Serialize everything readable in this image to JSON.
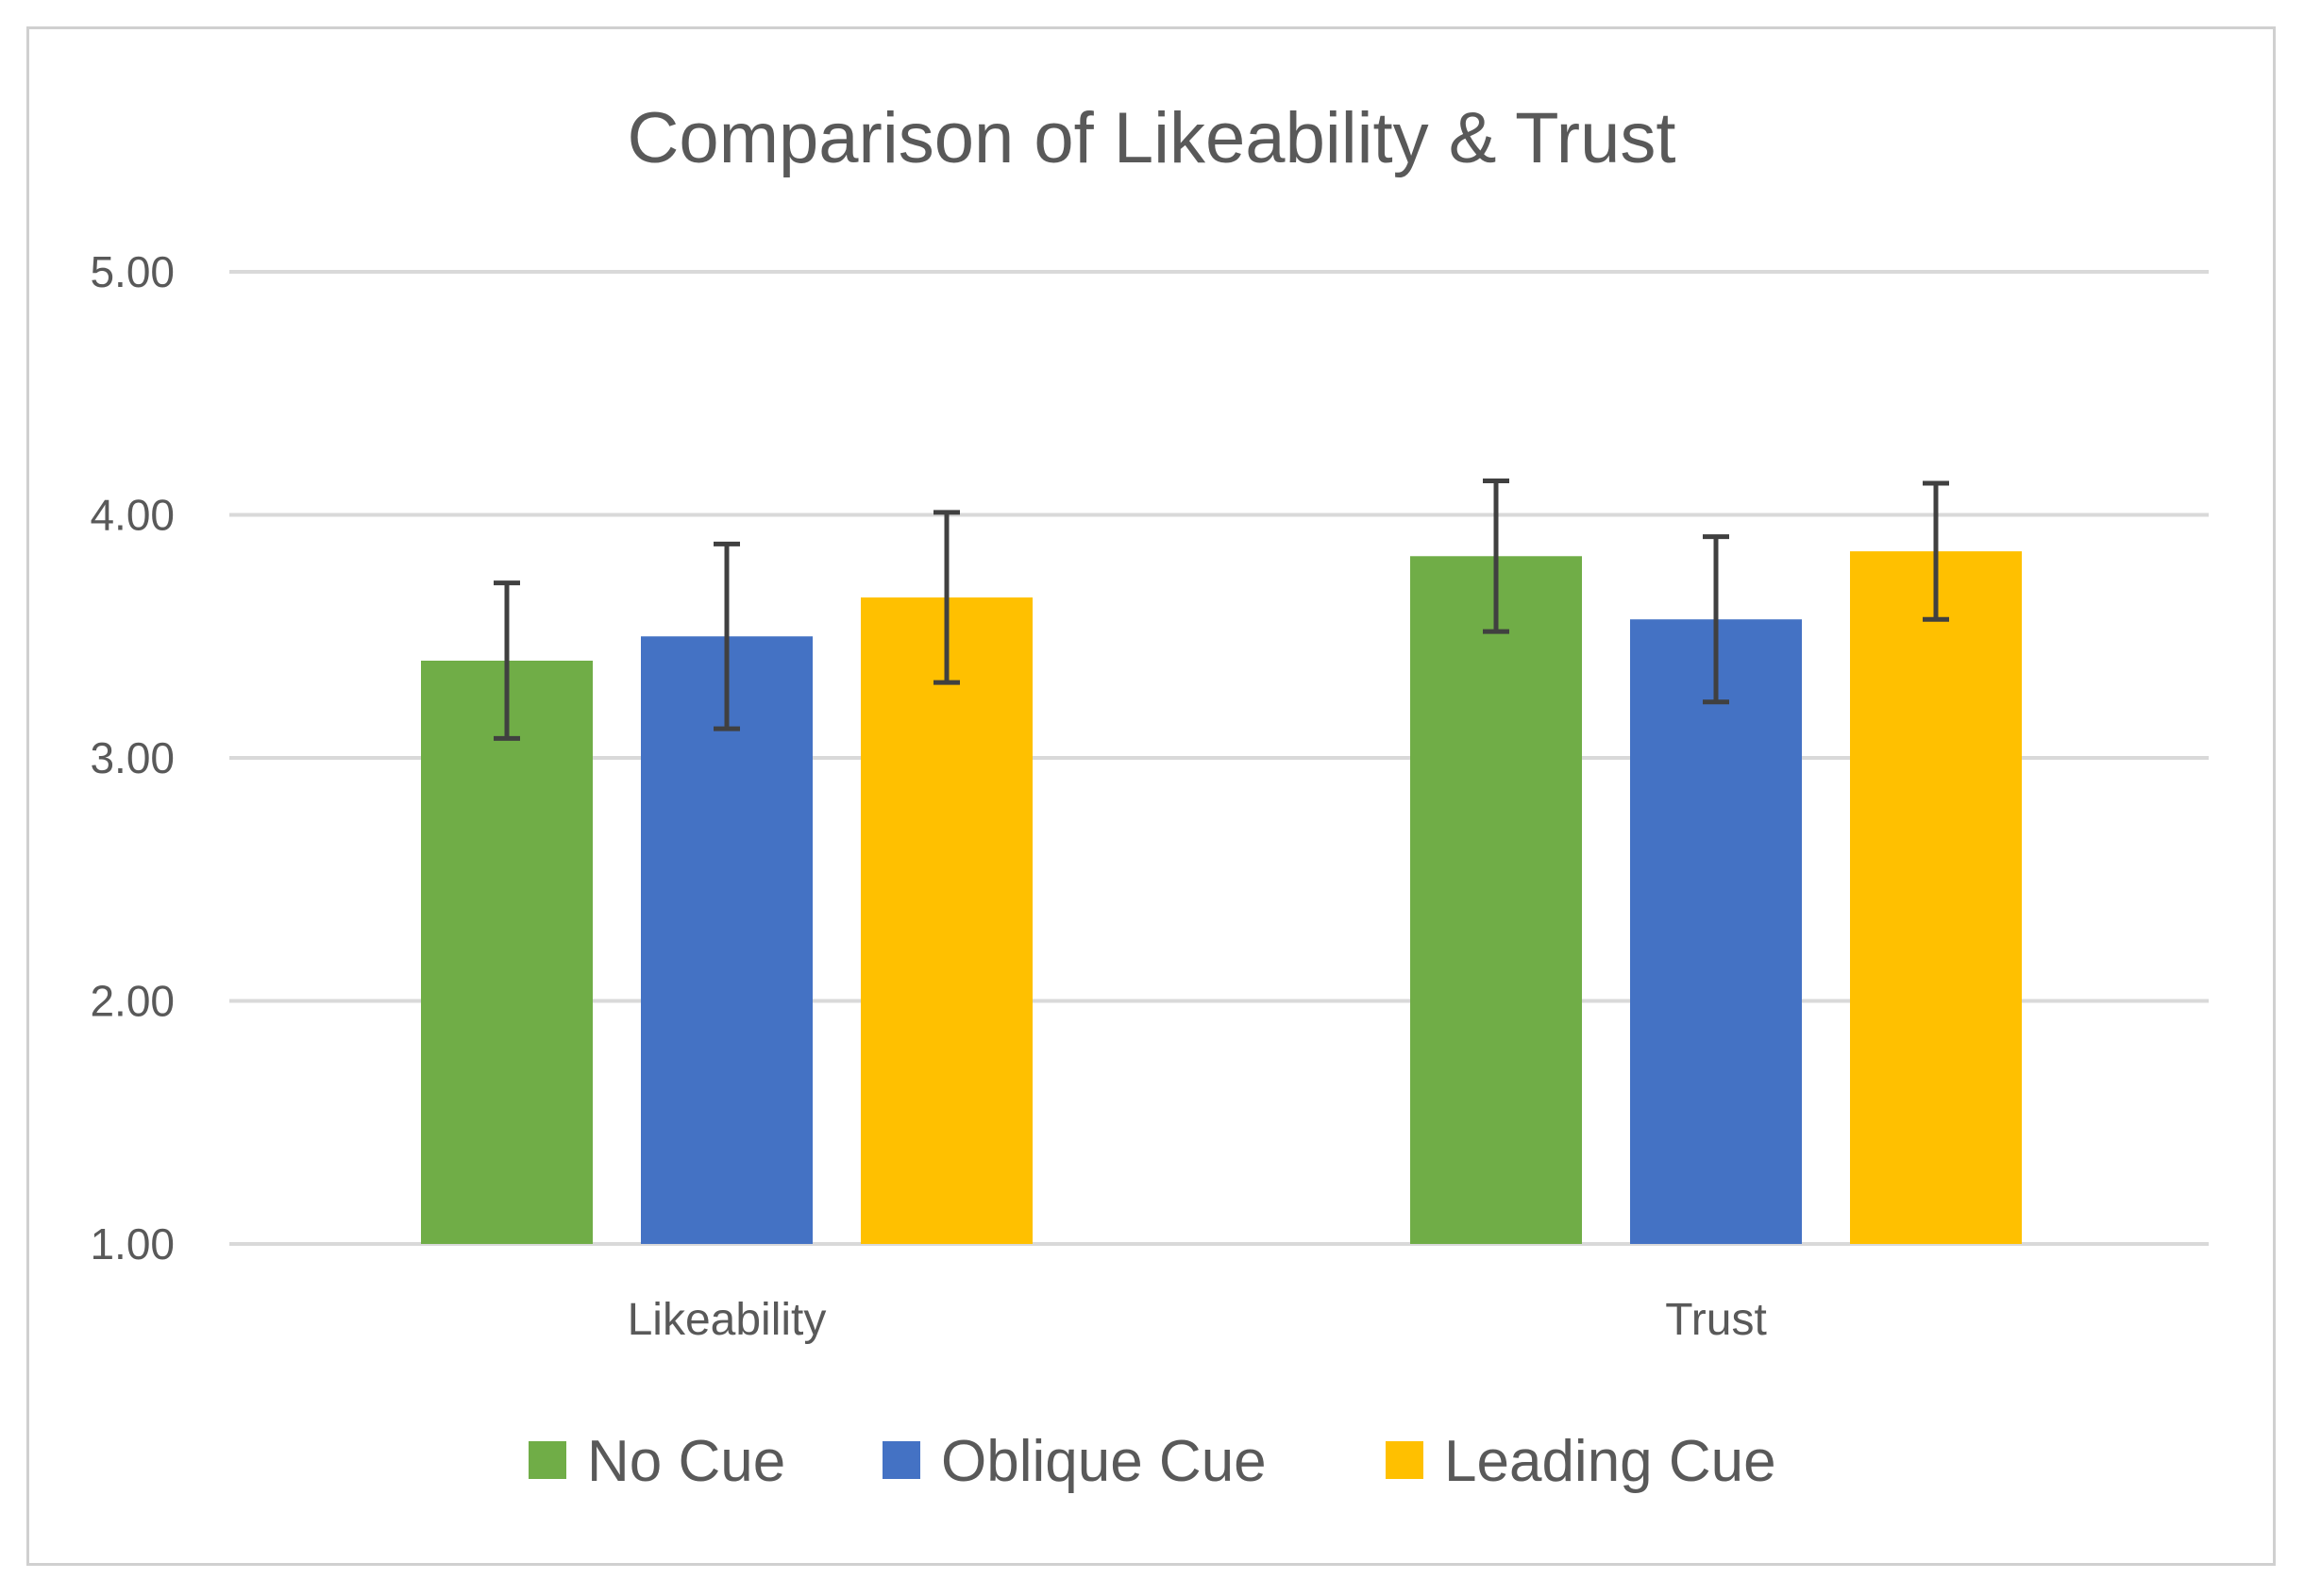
{
  "chart_data": {
    "type": "bar",
    "title": "Comparison of Likeability & Trust",
    "categories": [
      "Likeability",
      "Trust"
    ],
    "series": [
      {
        "name": "No Cue",
        "color": "#70ad47",
        "values": [
          3.4,
          3.83
        ],
        "error": [
          0.32,
          0.31
        ]
      },
      {
        "name": "Oblique Cue",
        "color": "#4472c4",
        "values": [
          3.5,
          3.57
        ],
        "error": [
          0.38,
          0.34
        ]
      },
      {
        "name": "Leading Cue",
        "color": "#ffc000",
        "values": [
          3.66,
          3.85
        ],
        "error": [
          0.35,
          0.28
        ]
      }
    ],
    "yticks": [
      "1.00",
      "2.00",
      "3.00",
      "4.00",
      "5.00"
    ],
    "ylim": [
      1,
      5
    ],
    "xlabel": "",
    "ylabel": "",
    "grid": true,
    "legend": "bottom"
  }
}
